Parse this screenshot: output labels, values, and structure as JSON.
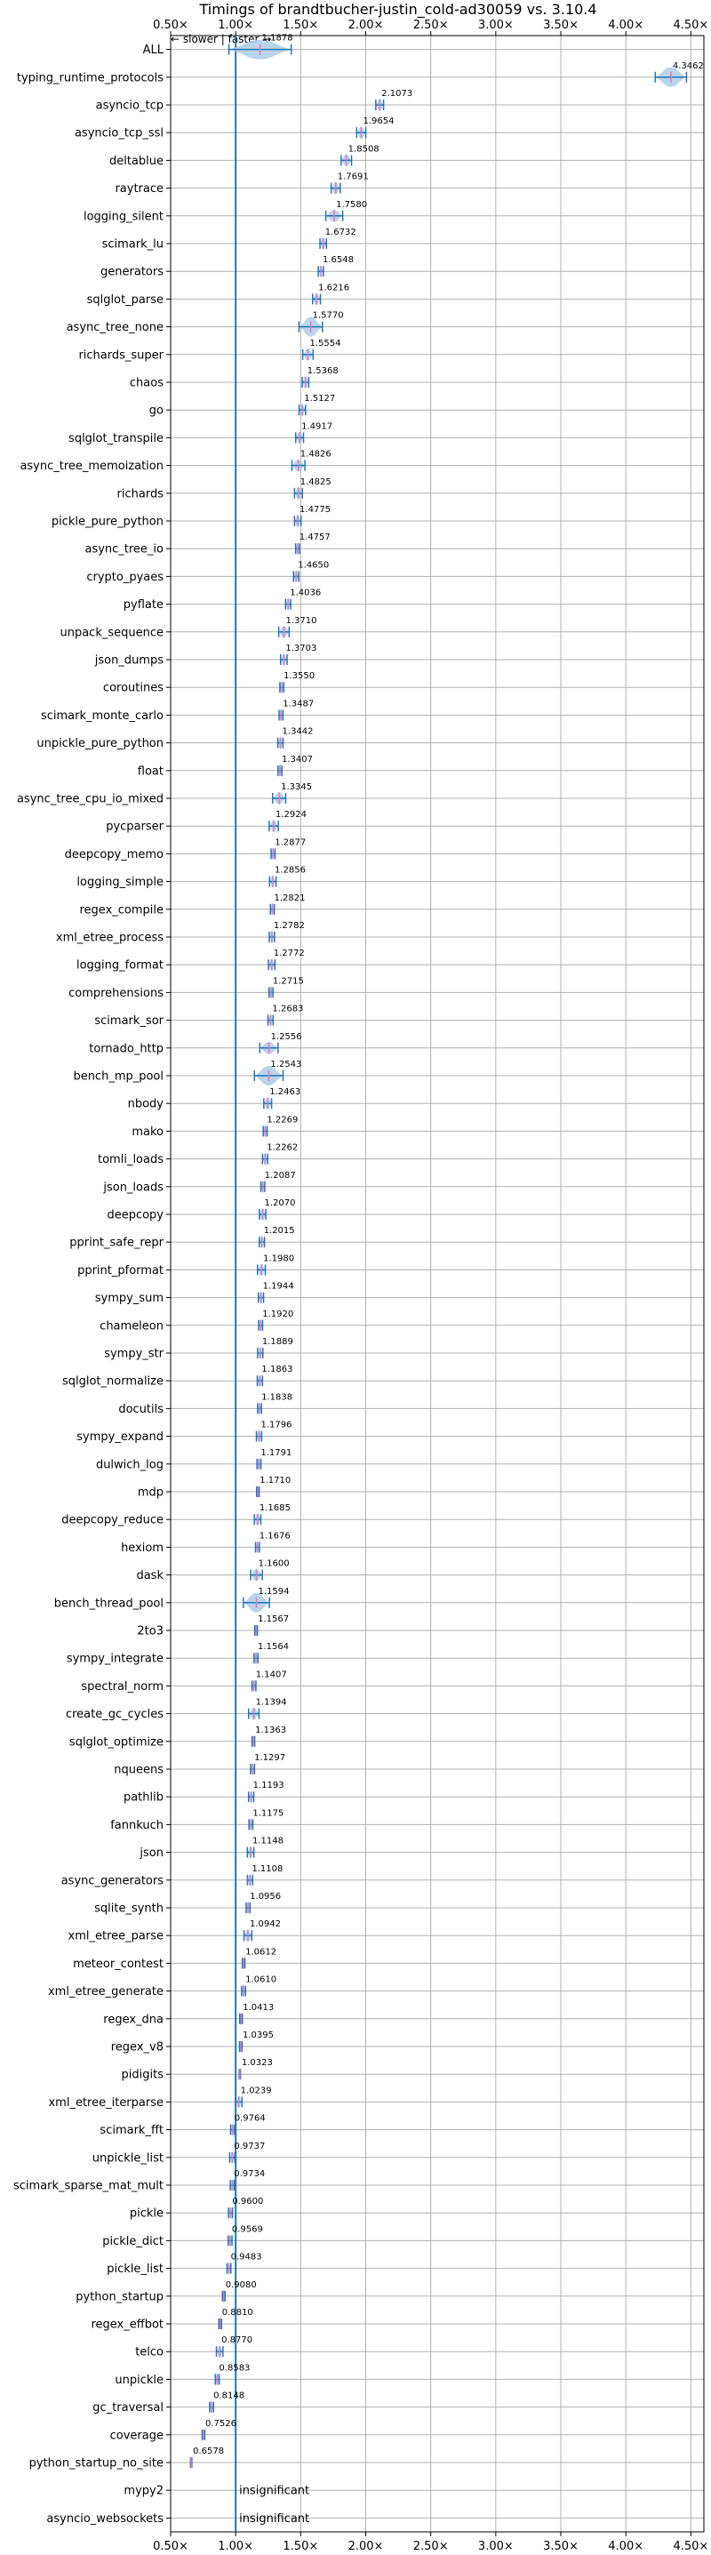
{
  "chart_data": {
    "type": "violin",
    "title": "Timings of brandtbucher-justin_cold-ad30059 vs. 3.10.4",
    "direction_label": "← slower | faster →",
    "xlim": [
      0.5,
      4.6
    ],
    "x_ticks": [
      0.5,
      1.0,
      1.5,
      2.0,
      2.5,
      3.0,
      3.5,
      4.0,
      4.5
    ],
    "x_tick_labels": [
      "0.50×",
      "1.00×",
      "1.50×",
      "2.00×",
      "2.50×",
      "3.00×",
      "3.50×",
      "4.00×",
      "4.50×"
    ],
    "reference_line": 1.0,
    "grid": true,
    "benchmarks": [
      {
        "name": "ALL",
        "value": 1.1878,
        "label": "1.1878",
        "spread": 0.48
      },
      {
        "name": "typing_runtime_protocols",
        "value": 4.3462,
        "label": "4.3462",
        "spread": 0.24
      },
      {
        "name": "asyncio_tcp",
        "value": 2.1073,
        "label": "2.1073",
        "spread": 0.06
      },
      {
        "name": "asyncio_tcp_ssl",
        "value": 1.9654,
        "label": "1.9654",
        "spread": 0.07
      },
      {
        "name": "deltablue",
        "value": 1.8508,
        "label": "1.8508",
        "spread": 0.08
      },
      {
        "name": "raytrace",
        "value": 1.7691,
        "label": "1.7691",
        "spread": 0.07
      },
      {
        "name": "logging_silent",
        "value": 1.758,
        "label": "1.7580",
        "spread": 0.13
      },
      {
        "name": "scimark_lu",
        "value": 1.6732,
        "label": "1.6732",
        "spread": 0.05
      },
      {
        "name": "generators",
        "value": 1.6548,
        "label": "1.6548",
        "spread": 0.04
      },
      {
        "name": "sqlglot_parse",
        "value": 1.6216,
        "label": "1.6216",
        "spread": 0.06
      },
      {
        "name": "async_tree_none",
        "value": 1.577,
        "label": "1.5770",
        "spread": 0.18
      },
      {
        "name": "richards_super",
        "value": 1.5554,
        "label": "1.5554",
        "spread": 0.08
      },
      {
        "name": "chaos",
        "value": 1.5368,
        "label": "1.5368",
        "spread": 0.05
      },
      {
        "name": "go",
        "value": 1.5127,
        "label": "1.5127",
        "spread": 0.05
      },
      {
        "name": "sqlglot_transpile",
        "value": 1.4917,
        "label": "1.4917",
        "spread": 0.06
      },
      {
        "name": "async_tree_memoization",
        "value": 1.4826,
        "label": "1.4826",
        "spread": 0.1
      },
      {
        "name": "richards",
        "value": 1.4825,
        "label": "1.4825",
        "spread": 0.06
      },
      {
        "name": "pickle_pure_python",
        "value": 1.4775,
        "label": "1.4775",
        "spread": 0.05
      },
      {
        "name": "async_tree_io",
        "value": 1.4757,
        "label": "1.4757",
        "spread": 0.03
      },
      {
        "name": "crypto_pyaes",
        "value": 1.465,
        "label": "1.4650",
        "spread": 0.04
      },
      {
        "name": "pyflate",
        "value": 1.4036,
        "label": "1.4036",
        "spread": 0.04
      },
      {
        "name": "unpack_sequence",
        "value": 1.371,
        "label": "1.3710",
        "spread": 0.08
      },
      {
        "name": "json_dumps",
        "value": 1.3703,
        "label": "1.3703",
        "spread": 0.05
      },
      {
        "name": "coroutines",
        "value": 1.355,
        "label": "1.3550",
        "spread": 0.03
      },
      {
        "name": "scimark_monte_carlo",
        "value": 1.3487,
        "label": "1.3487",
        "spread": 0.03
      },
      {
        "name": "unpickle_pure_python",
        "value": 1.3442,
        "label": "1.3442",
        "spread": 0.04
      },
      {
        "name": "float",
        "value": 1.3407,
        "label": "1.3407",
        "spread": 0.03
      },
      {
        "name": "async_tree_cpu_io_mixed",
        "value": 1.3345,
        "label": "1.3345",
        "spread": 0.1
      },
      {
        "name": "pycparser",
        "value": 1.2924,
        "label": "1.2924",
        "spread": 0.07
      },
      {
        "name": "deepcopy_memo",
        "value": 1.2877,
        "label": "1.2877",
        "spread": 0.03
      },
      {
        "name": "logging_simple",
        "value": 1.2856,
        "label": "1.2856",
        "spread": 0.05
      },
      {
        "name": "regex_compile",
        "value": 1.2821,
        "label": "1.2821",
        "spread": 0.03
      },
      {
        "name": "xml_etree_process",
        "value": 1.2782,
        "label": "1.2782",
        "spread": 0.04
      },
      {
        "name": "logging_format",
        "value": 1.2772,
        "label": "1.2772",
        "spread": 0.05
      },
      {
        "name": "comprehensions",
        "value": 1.2715,
        "label": "1.2715",
        "spread": 0.03
      },
      {
        "name": "scimark_sor",
        "value": 1.2683,
        "label": "1.2683",
        "spread": 0.04
      },
      {
        "name": "tornado_http",
        "value": 1.2556,
        "label": "1.2556",
        "spread": 0.14
      },
      {
        "name": "bench_mp_pool",
        "value": 1.2543,
        "label": "1.2543",
        "spread": 0.22
      },
      {
        "name": "nbody",
        "value": 1.2463,
        "label": "1.2463",
        "spread": 0.06
      },
      {
        "name": "mako",
        "value": 1.2269,
        "label": "1.2269",
        "spread": 0.03
      },
      {
        "name": "tomli_loads",
        "value": 1.2262,
        "label": "1.2262",
        "spread": 0.04
      },
      {
        "name": "json_loads",
        "value": 1.2087,
        "label": "1.2087",
        "spread": 0.03
      },
      {
        "name": "deepcopy",
        "value": 1.207,
        "label": "1.2070",
        "spread": 0.05
      },
      {
        "name": "pprint_safe_repr",
        "value": 1.2015,
        "label": "1.2015",
        "spread": 0.04
      },
      {
        "name": "pprint_pformat",
        "value": 1.198,
        "label": "1.1980",
        "spread": 0.06
      },
      {
        "name": "sympy_sum",
        "value": 1.1944,
        "label": "1.1944",
        "spread": 0.04
      },
      {
        "name": "chameleon",
        "value": 1.192,
        "label": "1.1920",
        "spread": 0.03
      },
      {
        "name": "sympy_str",
        "value": 1.1889,
        "label": "1.1889",
        "spread": 0.04
      },
      {
        "name": "sqlglot_normalize",
        "value": 1.1863,
        "label": "1.1863",
        "spread": 0.04
      },
      {
        "name": "docutils",
        "value": 1.1838,
        "label": "1.1838",
        "spread": 0.03
      },
      {
        "name": "sympy_expand",
        "value": 1.1796,
        "label": "1.1796",
        "spread": 0.04
      },
      {
        "name": "dulwich_log",
        "value": 1.1791,
        "label": "1.1791",
        "spread": 0.03
      },
      {
        "name": "mdp",
        "value": 1.171,
        "label": "1.1710",
        "spread": 0.02
      },
      {
        "name": "deepcopy_reduce",
        "value": 1.1685,
        "label": "1.1685",
        "spread": 0.05
      },
      {
        "name": "hexiom",
        "value": 1.1676,
        "label": "1.1676",
        "spread": 0.03
      },
      {
        "name": "dask",
        "value": 1.16,
        "label": "1.1600",
        "spread": 0.09
      },
      {
        "name": "bench_thread_pool",
        "value": 1.1594,
        "label": "1.1594",
        "spread": 0.2
      },
      {
        "name": "2to3",
        "value": 1.1567,
        "label": "1.1567",
        "spread": 0.02
      },
      {
        "name": "sympy_integrate",
        "value": 1.1564,
        "label": "1.1564",
        "spread": 0.03
      },
      {
        "name": "spectral_norm",
        "value": 1.1407,
        "label": "1.1407",
        "spread": 0.03
      },
      {
        "name": "create_gc_cycles",
        "value": 1.1394,
        "label": "1.1394",
        "spread": 0.08
      },
      {
        "name": "sqlglot_optimize",
        "value": 1.1363,
        "label": "1.1363",
        "spread": 0.02
      },
      {
        "name": "nqueens",
        "value": 1.1297,
        "label": "1.1297",
        "spread": 0.03
      },
      {
        "name": "pathlib",
        "value": 1.1193,
        "label": "1.1193",
        "spread": 0.04
      },
      {
        "name": "fannkuch",
        "value": 1.1175,
        "label": "1.1175",
        "spread": 0.03
      },
      {
        "name": "json",
        "value": 1.1148,
        "label": "1.1148",
        "spread": 0.05
      },
      {
        "name": "async_generators",
        "value": 1.1108,
        "label": "1.1108",
        "spread": 0.04
      },
      {
        "name": "sqlite_synth",
        "value": 1.0956,
        "label": "1.0956",
        "spread": 0.03
      },
      {
        "name": "xml_etree_parse",
        "value": 1.0942,
        "label": "1.0942",
        "spread": 0.06
      },
      {
        "name": "meteor_contest",
        "value": 1.0612,
        "label": "1.0612",
        "spread": 0.02
      },
      {
        "name": "xml_etree_generate",
        "value": 1.061,
        "label": "1.0610",
        "spread": 0.03
      },
      {
        "name": "regex_dna",
        "value": 1.0413,
        "label": "1.0413",
        "spread": 0.02
      },
      {
        "name": "regex_v8",
        "value": 1.0395,
        "label": "1.0395",
        "spread": 0.02
      },
      {
        "name": "pidigits",
        "value": 1.0323,
        "label": "1.0323",
        "spread": 0.01
      },
      {
        "name": "xml_etree_iterparse",
        "value": 1.0239,
        "label": "1.0239",
        "spread": 0.05
      },
      {
        "name": "scimark_fft",
        "value": 0.9764,
        "label": "0.9764",
        "spread": 0.03
      },
      {
        "name": "unpickle_list",
        "value": 0.9737,
        "label": "0.9737",
        "spread": 0.04
      },
      {
        "name": "scimark_sparse_mat_mult",
        "value": 0.9734,
        "label": "0.9734",
        "spread": 0.03
      },
      {
        "name": "pickle",
        "value": 0.96,
        "label": "0.9600",
        "spread": 0.03
      },
      {
        "name": "pickle_dict",
        "value": 0.9569,
        "label": "0.9569",
        "spread": 0.03
      },
      {
        "name": "pickle_list",
        "value": 0.9483,
        "label": "0.9483",
        "spread": 0.03
      },
      {
        "name": "python_startup",
        "value": 0.908,
        "label": "0.9080",
        "spread": 0.02
      },
      {
        "name": "regex_effbot",
        "value": 0.881,
        "label": "0.8810",
        "spread": 0.02
      },
      {
        "name": "telco",
        "value": 0.877,
        "label": "0.8770",
        "spread": 0.05
      },
      {
        "name": "unpickle",
        "value": 0.8583,
        "label": "0.8583",
        "spread": 0.03
      },
      {
        "name": "gc_traversal",
        "value": 0.8148,
        "label": "0.8148",
        "spread": 0.03
      },
      {
        "name": "coverage",
        "value": 0.7526,
        "label": "0.7526",
        "spread": 0.02
      },
      {
        "name": "python_startup_no_site",
        "value": 0.6578,
        "label": "0.6578",
        "spread": 0.01
      },
      {
        "name": "mypy2",
        "value": null,
        "label": "insignificant",
        "spread": 0
      },
      {
        "name": "asyncio_websockets",
        "value": null,
        "label": "insignificant",
        "spread": 0
      }
    ],
    "colors": {
      "violin": "#aecde6",
      "marker": "#1f77b4",
      "median": "#e377c2",
      "grid": "#b0b0b0",
      "axis": "#000000"
    }
  }
}
